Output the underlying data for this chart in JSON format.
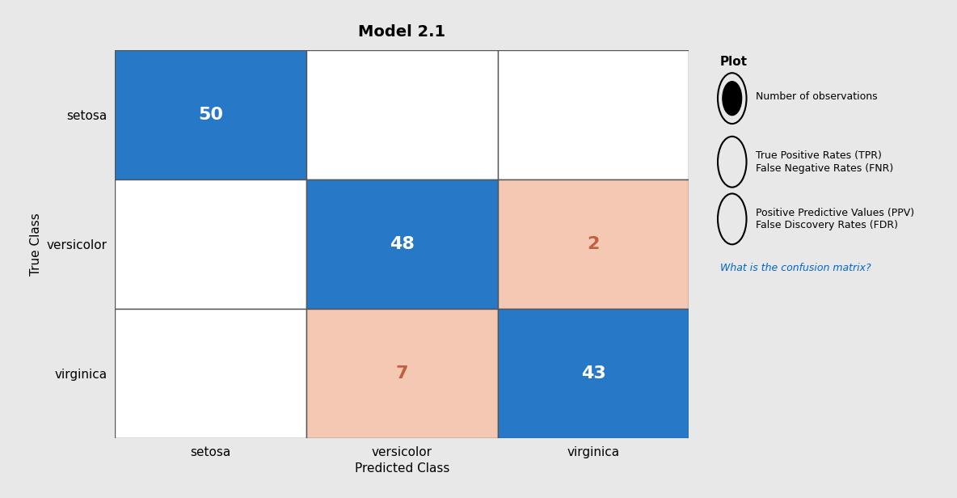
{
  "title": "Model 2.1",
  "classes": [
    "setosa",
    "versicolor",
    "virginica"
  ],
  "matrix": [
    [
      50,
      0,
      0
    ],
    [
      0,
      48,
      2
    ],
    [
      0,
      7,
      43
    ]
  ],
  "xlabel": "Predicted Class",
  "ylabel": "True Class",
  "blue_color": "#2878C8",
  "pink_color": "#F5C8B4",
  "white_color": "#FFFFFF",
  "text_color_blue": "#FFFFFF",
  "text_color_pink": "#C06040",
  "text_color_white": "#000000",
  "bg_color": "#E8E8E8",
  "grid_color": "#555555",
  "title_fontsize": 14,
  "label_fontsize": 11,
  "tick_fontsize": 11,
  "value_fontsize": 16
}
